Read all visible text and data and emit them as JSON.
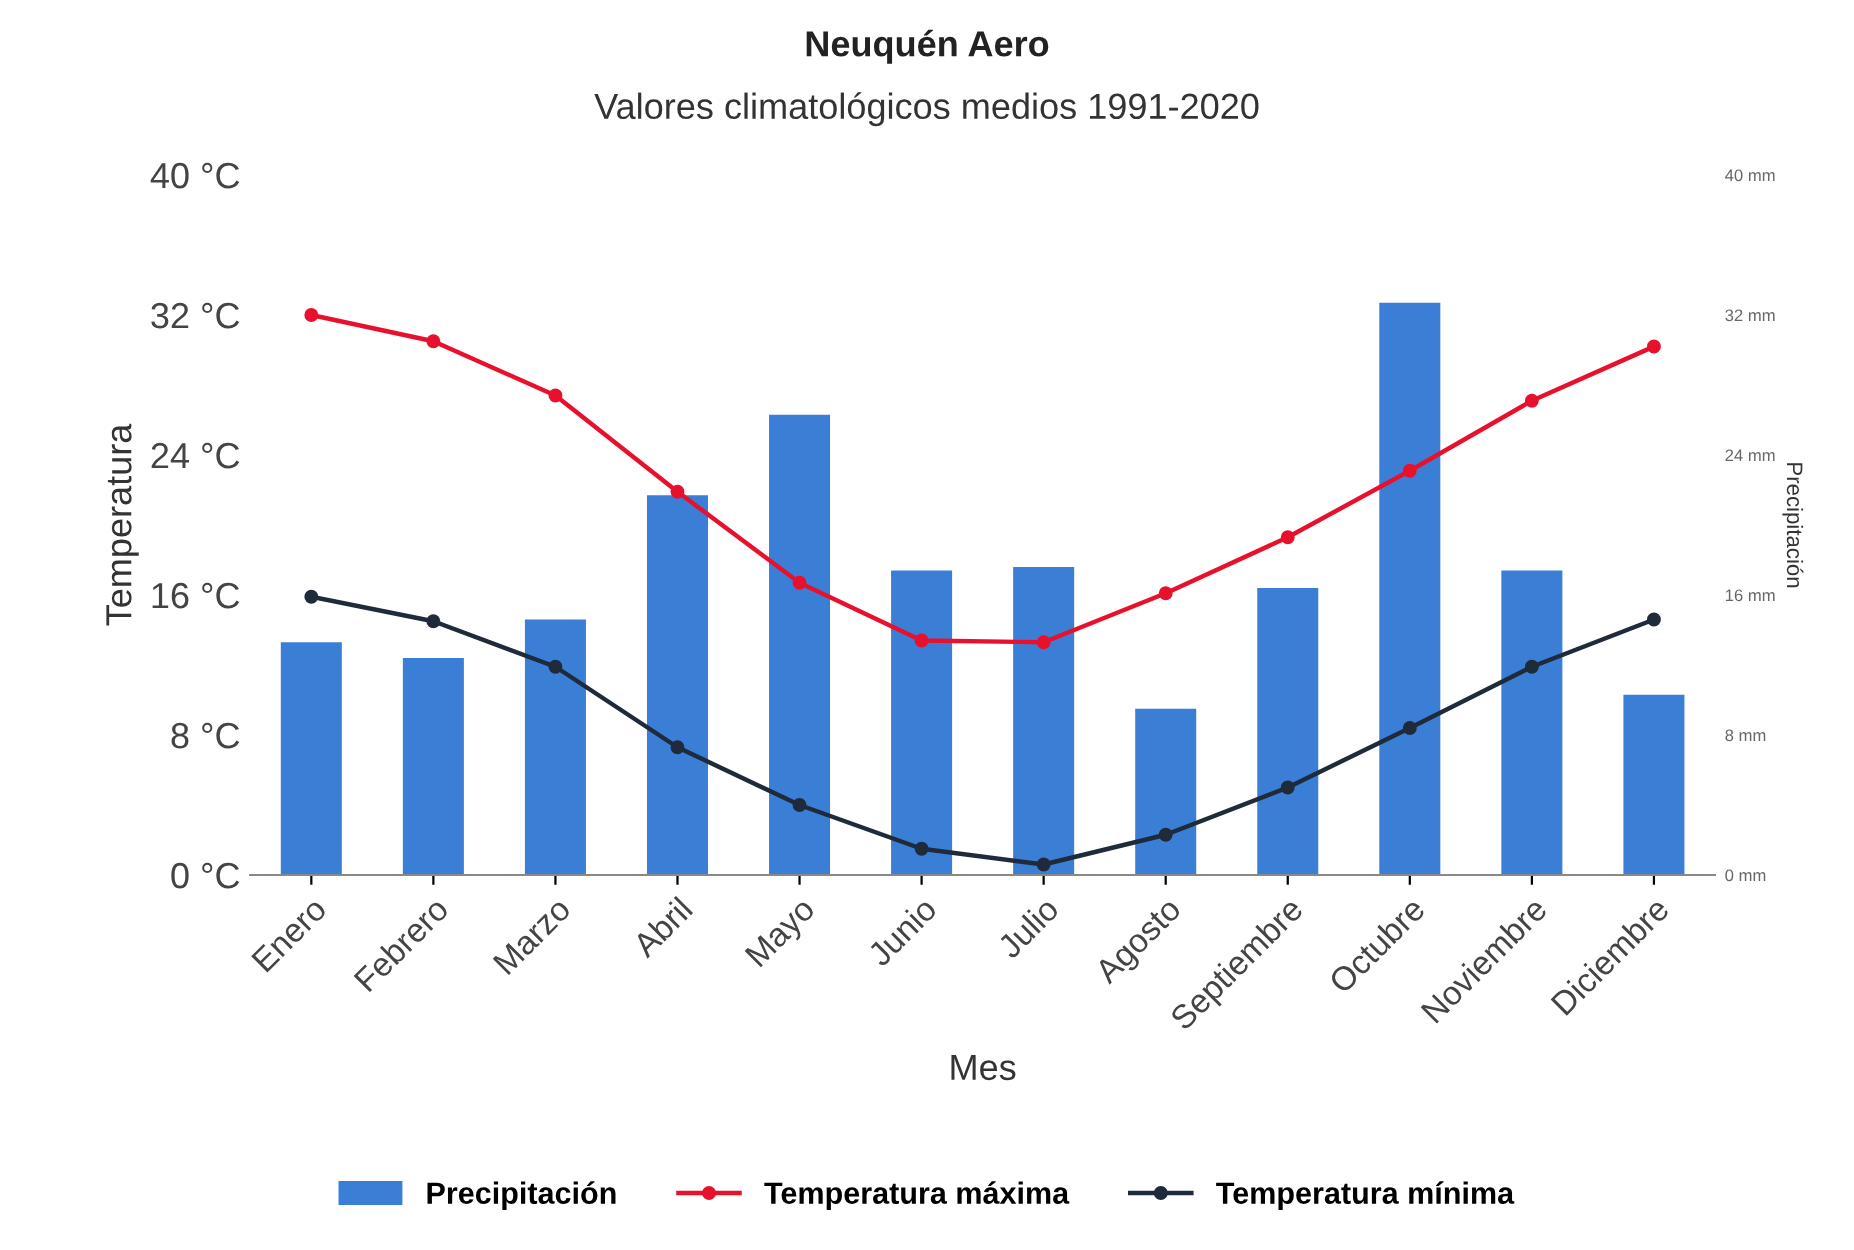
{
  "chart_data": {
    "type": "bar",
    "title": "Neuquén Aero",
    "subtitle": "Valores climatológicos medios 1991-2020",
    "xlabel": "Mes",
    "ylabel": "Temperatura",
    "y2label": "Precipitación",
    "categories": [
      "Enero",
      "Febrero",
      "Marzo",
      "Abril",
      "Mayo",
      "Junio",
      "Julio",
      "Agosto",
      "Septiembre",
      "Octubre",
      "Noviembre",
      "Diciembre"
    ],
    "series": [
      {
        "name": "Precipitación",
        "axis": "y2",
        "color": "#3a7fd5",
        "values": [
          13.3,
          12.4,
          14.6,
          21.7,
          26.3,
          17.4,
          17.6,
          9.5,
          16.4,
          32.7,
          17.4,
          10.3
        ]
      },
      {
        "name": "Temperatura máxima",
        "type": "line",
        "color": "#e8112d",
        "marker": "circle",
        "values": [
          32.0,
          30.5,
          27.4,
          21.9,
          16.7,
          13.4,
          13.3,
          16.1,
          19.3,
          23.1,
          27.1,
          30.2
        ]
      },
      {
        "name": "Temperatura mínima",
        "type": "line",
        "color": "#1f2a3a",
        "marker": "circle",
        "values": [
          15.9,
          14.5,
          11.9,
          7.3,
          4.0,
          1.5,
          0.6,
          2.3,
          5.0,
          8.4,
          11.9,
          14.6
        ]
      }
    ],
    "ylim": [
      0,
      40
    ],
    "yticks": [
      {
        "value": 0,
        "label": "0 °C"
      },
      {
        "value": 8,
        "label": "8 °C"
      },
      {
        "value": 16,
        "label": "16 °C"
      },
      {
        "value": 24,
        "label": "24 °C"
      },
      {
        "value": 32,
        "label": "32 °C"
      },
      {
        "value": 40,
        "label": "40 °C"
      }
    ],
    "y2lim": [
      0,
      40
    ],
    "y2ticks": [
      {
        "value": 0,
        "label": "0 mm"
      },
      {
        "value": 8,
        "label": "8 mm"
      },
      {
        "value": 16,
        "label": "16 mm"
      },
      {
        "value": 24,
        "label": "24 mm"
      },
      {
        "value": 32,
        "label": "32 mm"
      },
      {
        "value": 40,
        "label": "40 mm"
      }
    ],
    "grid": false,
    "legend": "bottom",
    "line_style": "solid"
  }
}
